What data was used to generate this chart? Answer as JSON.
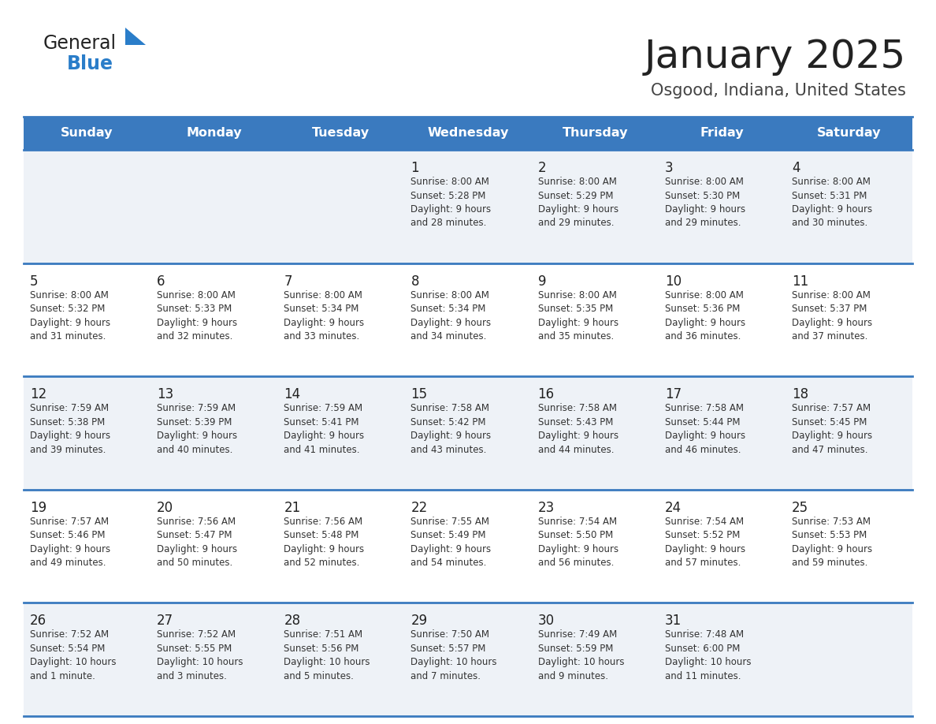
{
  "title": "January 2025",
  "subtitle": "Osgood, Indiana, United States",
  "days_of_week": [
    "Sunday",
    "Monday",
    "Tuesday",
    "Wednesday",
    "Thursday",
    "Friday",
    "Saturday"
  ],
  "header_bg": "#3a7abf",
  "header_text": "#ffffff",
  "row_bg_odd": "#eef2f7",
  "row_bg_even": "#ffffff",
  "divider_color": "#3a7abf",
  "day_num_color": "#222222",
  "cell_text_color": "#333333",
  "title_color": "#222222",
  "subtitle_color": "#444444",
  "logo_general_color": "#222222",
  "logo_blue_color": "#2a7dc9",
  "calendar_data": [
    [
      {
        "day": 0,
        "info": ""
      },
      {
        "day": 0,
        "info": ""
      },
      {
        "day": 0,
        "info": ""
      },
      {
        "day": 1,
        "info": "Sunrise: 8:00 AM\nSunset: 5:28 PM\nDaylight: 9 hours\nand 28 minutes."
      },
      {
        "day": 2,
        "info": "Sunrise: 8:00 AM\nSunset: 5:29 PM\nDaylight: 9 hours\nand 29 minutes."
      },
      {
        "day": 3,
        "info": "Sunrise: 8:00 AM\nSunset: 5:30 PM\nDaylight: 9 hours\nand 29 minutes."
      },
      {
        "day": 4,
        "info": "Sunrise: 8:00 AM\nSunset: 5:31 PM\nDaylight: 9 hours\nand 30 minutes."
      }
    ],
    [
      {
        "day": 5,
        "info": "Sunrise: 8:00 AM\nSunset: 5:32 PM\nDaylight: 9 hours\nand 31 minutes."
      },
      {
        "day": 6,
        "info": "Sunrise: 8:00 AM\nSunset: 5:33 PM\nDaylight: 9 hours\nand 32 minutes."
      },
      {
        "day": 7,
        "info": "Sunrise: 8:00 AM\nSunset: 5:34 PM\nDaylight: 9 hours\nand 33 minutes."
      },
      {
        "day": 8,
        "info": "Sunrise: 8:00 AM\nSunset: 5:34 PM\nDaylight: 9 hours\nand 34 minutes."
      },
      {
        "day": 9,
        "info": "Sunrise: 8:00 AM\nSunset: 5:35 PM\nDaylight: 9 hours\nand 35 minutes."
      },
      {
        "day": 10,
        "info": "Sunrise: 8:00 AM\nSunset: 5:36 PM\nDaylight: 9 hours\nand 36 minutes."
      },
      {
        "day": 11,
        "info": "Sunrise: 8:00 AM\nSunset: 5:37 PM\nDaylight: 9 hours\nand 37 minutes."
      }
    ],
    [
      {
        "day": 12,
        "info": "Sunrise: 7:59 AM\nSunset: 5:38 PM\nDaylight: 9 hours\nand 39 minutes."
      },
      {
        "day": 13,
        "info": "Sunrise: 7:59 AM\nSunset: 5:39 PM\nDaylight: 9 hours\nand 40 minutes."
      },
      {
        "day": 14,
        "info": "Sunrise: 7:59 AM\nSunset: 5:41 PM\nDaylight: 9 hours\nand 41 minutes."
      },
      {
        "day": 15,
        "info": "Sunrise: 7:58 AM\nSunset: 5:42 PM\nDaylight: 9 hours\nand 43 minutes."
      },
      {
        "day": 16,
        "info": "Sunrise: 7:58 AM\nSunset: 5:43 PM\nDaylight: 9 hours\nand 44 minutes."
      },
      {
        "day": 17,
        "info": "Sunrise: 7:58 AM\nSunset: 5:44 PM\nDaylight: 9 hours\nand 46 minutes."
      },
      {
        "day": 18,
        "info": "Sunrise: 7:57 AM\nSunset: 5:45 PM\nDaylight: 9 hours\nand 47 minutes."
      }
    ],
    [
      {
        "day": 19,
        "info": "Sunrise: 7:57 AM\nSunset: 5:46 PM\nDaylight: 9 hours\nand 49 minutes."
      },
      {
        "day": 20,
        "info": "Sunrise: 7:56 AM\nSunset: 5:47 PM\nDaylight: 9 hours\nand 50 minutes."
      },
      {
        "day": 21,
        "info": "Sunrise: 7:56 AM\nSunset: 5:48 PM\nDaylight: 9 hours\nand 52 minutes."
      },
      {
        "day": 22,
        "info": "Sunrise: 7:55 AM\nSunset: 5:49 PM\nDaylight: 9 hours\nand 54 minutes."
      },
      {
        "day": 23,
        "info": "Sunrise: 7:54 AM\nSunset: 5:50 PM\nDaylight: 9 hours\nand 56 minutes."
      },
      {
        "day": 24,
        "info": "Sunrise: 7:54 AM\nSunset: 5:52 PM\nDaylight: 9 hours\nand 57 minutes."
      },
      {
        "day": 25,
        "info": "Sunrise: 7:53 AM\nSunset: 5:53 PM\nDaylight: 9 hours\nand 59 minutes."
      }
    ],
    [
      {
        "day": 26,
        "info": "Sunrise: 7:52 AM\nSunset: 5:54 PM\nDaylight: 10 hours\nand 1 minute."
      },
      {
        "day": 27,
        "info": "Sunrise: 7:52 AM\nSunset: 5:55 PM\nDaylight: 10 hours\nand 3 minutes."
      },
      {
        "day": 28,
        "info": "Sunrise: 7:51 AM\nSunset: 5:56 PM\nDaylight: 10 hours\nand 5 minutes."
      },
      {
        "day": 29,
        "info": "Sunrise: 7:50 AM\nSunset: 5:57 PM\nDaylight: 10 hours\nand 7 minutes."
      },
      {
        "day": 30,
        "info": "Sunrise: 7:49 AM\nSunset: 5:59 PM\nDaylight: 10 hours\nand 9 minutes."
      },
      {
        "day": 31,
        "info": "Sunrise: 7:48 AM\nSunset: 6:00 PM\nDaylight: 10 hours\nand 11 minutes."
      },
      {
        "day": 0,
        "info": ""
      }
    ]
  ]
}
